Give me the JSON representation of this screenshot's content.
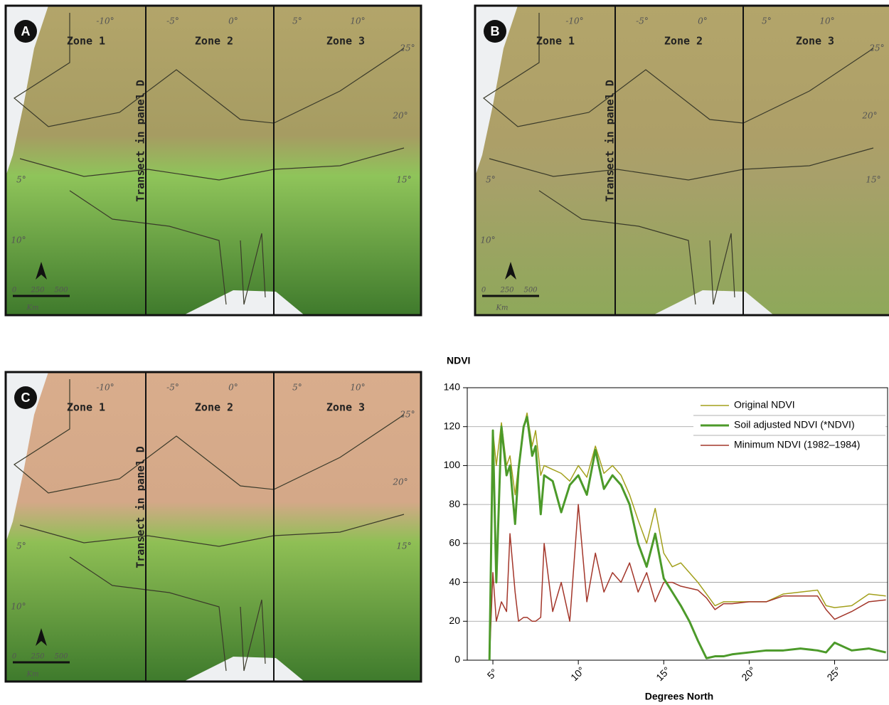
{
  "maps": [
    {
      "letter": "A",
      "zones": [
        "Zone 1",
        "Zone 2",
        "Zone 3"
      ],
      "transect": "Transect in panel D",
      "colors": [
        "#b3a56a",
        "#a69c62",
        "#8fc45a",
        "#3f7a2c"
      ]
    },
    {
      "letter": "B",
      "zones": [
        "Zone 1",
        "Zone 2",
        "Zone 3"
      ],
      "transect": "Transect in panel D",
      "colors": [
        "#b3a56a",
        "#ad9f68",
        "#a8a06a",
        "#8ea85a"
      ]
    },
    {
      "letter": "C",
      "zones": [
        "Zone 1",
        "Zone 2",
        "Zone 3"
      ],
      "transect": "Transect in panel D",
      "colors": [
        "#d9ad8c",
        "#d4a888",
        "#8fbf55",
        "#3e7a2c"
      ]
    }
  ],
  "lon_labels": [
    "-10°",
    "-5°",
    "0°",
    "5°",
    "10°"
  ],
  "lat_labels": [
    "25°",
    "20°",
    "15°",
    "10°",
    "5°"
  ],
  "scale_labels": [
    "0",
    "250",
    "500",
    "Km"
  ],
  "chart_data": {
    "type": "line",
    "y_label": "NDVI",
    "x_label": "Degrees North",
    "x": [
      4.8,
      5,
      5.2,
      5.5,
      5.8,
      6,
      6.3,
      6.5,
      6.8,
      7,
      7.3,
      7.5,
      7.8,
      8,
      8.5,
      9,
      9.5,
      10,
      10.5,
      11,
      11.5,
      12,
      12.5,
      13,
      13.5,
      14,
      14.5,
      15,
      15.5,
      16,
      16.5,
      17,
      17.5,
      18,
      18.5,
      19,
      20,
      21,
      22,
      23,
      24,
      24.5,
      25,
      26,
      27,
      28
    ],
    "series": [
      {
        "name": "Original NDVI",
        "color": "#a3a01c",
        "width": 1.5,
        "values": [
          0,
          118,
          100,
          122,
          100,
          105,
          85,
          100,
          120,
          127,
          110,
          118,
          95,
          100,
          98,
          96,
          92,
          100,
          94,
          110,
          96,
          100,
          95,
          85,
          72,
          60,
          78,
          55,
          48,
          50,
          45,
          40,
          34,
          28,
          30,
          30,
          30,
          30,
          34,
          35,
          36,
          28,
          27,
          28,
          34,
          33
        ]
      },
      {
        "name": "Soil adjusted NDVI (*NDVI)",
        "color": "#4c9a2a",
        "width": 3,
        "values": [
          0,
          118,
          40,
          120,
          95,
          100,
          70,
          98,
          120,
          125,
          105,
          110,
          75,
          95,
          92,
          76,
          90,
          95,
          85,
          108,
          88,
          95,
          90,
          80,
          60,
          48,
          65,
          42,
          35,
          28,
          20,
          10,
          1,
          2,
          2,
          3,
          4,
          5,
          5,
          6,
          5,
          4,
          9,
          5,
          6,
          4
        ]
      },
      {
        "name": "Minimum NDVI (1982–1984)",
        "color": "#a3362a",
        "width": 1.5,
        "values": [
          0,
          45,
          20,
          30,
          25,
          65,
          35,
          20,
          22,
          22,
          20,
          20,
          22,
          60,
          25,
          40,
          20,
          80,
          30,
          55,
          35,
          45,
          40,
          50,
          35,
          45,
          30,
          40,
          40,
          38,
          37,
          36,
          32,
          26,
          29,
          29,
          30,
          30,
          33,
          33,
          33,
          26,
          21,
          25,
          30,
          31
        ]
      }
    ],
    "xlim": [
      3.5,
      28.1
    ],
    "xticks": [
      {
        "value": 5,
        "label": "5°"
      },
      {
        "value": 10,
        "label": "10°"
      },
      {
        "value": 15,
        "label": "15°"
      },
      {
        "value": 20,
        "label": "20°"
      },
      {
        "value": 25,
        "label": "25°"
      }
    ],
    "ylim": [
      0,
      140
    ],
    "yticks": [
      0,
      20,
      40,
      60,
      80,
      100,
      120,
      140
    ],
    "grid": true,
    "legend": "top-right"
  }
}
